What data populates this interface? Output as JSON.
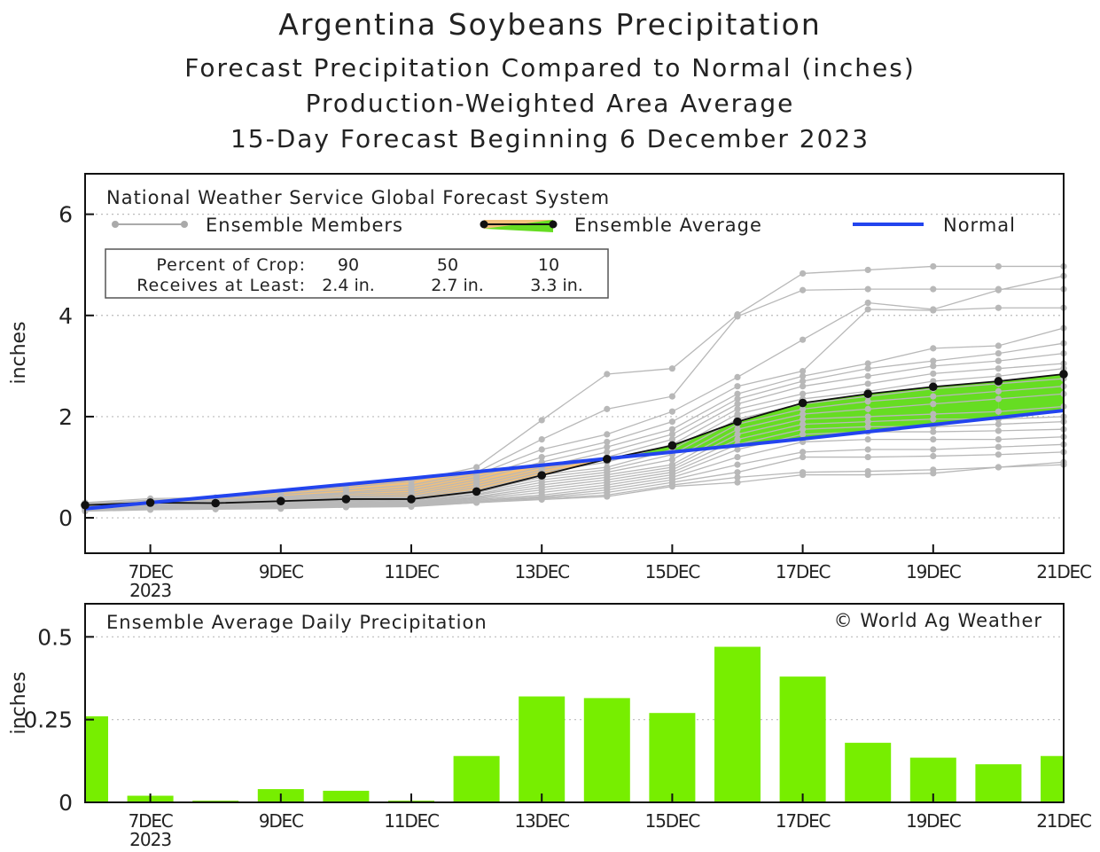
{
  "titles": {
    "main": "Argentina Soybeans Precipitation",
    "line2": "Forecast Precipitation Compared to Normal (inches)",
    "line3": "Production-Weighted Area Average",
    "line4": "15-Day Forecast Beginning 6 December 2023"
  },
  "legend": {
    "source": "National Weather Service Global Forecast System",
    "members": "Ensemble Members",
    "average": "Ensemble Average",
    "normal": "Normal"
  },
  "crop_box": {
    "row1_label": "Percent of Crop:",
    "row2_label": "Receives at Least:",
    "percents": [
      "90",
      "50",
      "10"
    ],
    "amounts": [
      "2.4 in.",
      "2.7 in.",
      "3.3 in."
    ]
  },
  "colors": {
    "normal": "#2244ee",
    "ensemble_avg": "#111111",
    "wet_fill": "#66dd22",
    "dry_fill": "#f3c07a",
    "members": "#b8b8b8",
    "bars": "#77ee00"
  },
  "chart_data": [
    {
      "type": "line",
      "title": "",
      "ylabel": "inches",
      "xlabel": "",
      "x": [
        6,
        7,
        8,
        9,
        10,
        11,
        12,
        13,
        14,
        15,
        16,
        17,
        18,
        19,
        20,
        21
      ],
      "xticks": [
        7,
        9,
        11,
        13,
        15,
        17,
        19,
        21
      ],
      "xtick_labels": [
        "7DEC",
        "9DEC",
        "11DEC",
        "13DEC",
        "15DEC",
        "17DEC",
        "19DEC",
        "21DEC"
      ],
      "xtick_sublabel": "2023",
      "ylim": [
        -0.7,
        6.8
      ],
      "yticks": [
        0,
        2,
        4,
        6
      ],
      "series": [
        {
          "name": "Ensemble Average",
          "values": [
            0.25,
            0.3,
            0.29,
            0.33,
            0.37,
            0.37,
            0.52,
            0.84,
            1.16,
            1.43,
            1.9,
            2.27,
            2.45,
            2.59,
            2.7,
            2.84
          ]
        },
        {
          "name": "Normal",
          "values": [
            0.18,
            0.3,
            0.42,
            0.54,
            0.66,
            0.78,
            0.91,
            1.04,
            1.17,
            1.3,
            1.43,
            1.56,
            1.7,
            1.84,
            1.98,
            2.12
          ]
        }
      ],
      "members": [
        [
          0.3,
          0.38,
          0.4,
          0.5,
          0.6,
          0.72,
          1.0,
          1.93,
          2.84,
          2.95,
          4.02,
          4.83,
          4.9,
          4.97,
          4.97,
          4.97
        ],
        [
          0.28,
          0.35,
          0.38,
          0.46,
          0.55,
          0.65,
          0.9,
          1.55,
          2.15,
          2.4,
          3.98,
          4.5,
          4.52,
          4.52,
          4.52,
          4.52
        ],
        [
          0.26,
          0.33,
          0.35,
          0.42,
          0.5,
          0.6,
          0.85,
          1.35,
          1.65,
          2.1,
          2.78,
          3.52,
          4.25,
          4.12,
          4.5,
          4.78
        ],
        [
          0.25,
          0.32,
          0.33,
          0.4,
          0.48,
          0.55,
          0.8,
          1.2,
          1.5,
          1.9,
          2.6,
          2.9,
          4.12,
          4.1,
          4.15,
          4.15
        ],
        [
          0.24,
          0.3,
          0.32,
          0.38,
          0.45,
          0.5,
          0.75,
          1.1,
          1.4,
          1.75,
          2.45,
          2.8,
          3.05,
          3.35,
          3.4,
          3.75
        ],
        [
          0.23,
          0.29,
          0.31,
          0.36,
          0.42,
          0.46,
          0.7,
          1.0,
          1.3,
          1.65,
          2.35,
          2.7,
          2.95,
          3.1,
          3.25,
          3.45
        ],
        [
          0.22,
          0.28,
          0.3,
          0.34,
          0.4,
          0.42,
          0.65,
          0.95,
          1.2,
          1.55,
          2.25,
          2.6,
          2.8,
          3.0,
          3.1,
          3.25
        ],
        [
          0.21,
          0.27,
          0.29,
          0.32,
          0.38,
          0.4,
          0.6,
          0.9,
          1.1,
          1.45,
          2.15,
          2.45,
          2.65,
          2.85,
          2.95,
          3.05
        ],
        [
          0.2,
          0.26,
          0.28,
          0.3,
          0.36,
          0.38,
          0.55,
          0.85,
          1.0,
          1.35,
          2.05,
          2.35,
          2.5,
          2.7,
          2.8,
          2.95
        ],
        [
          0.2,
          0.25,
          0.27,
          0.29,
          0.34,
          0.36,
          0.52,
          0.8,
          0.95,
          1.25,
          1.95,
          2.25,
          2.4,
          2.55,
          2.65,
          2.75
        ],
        [
          0.19,
          0.24,
          0.26,
          0.28,
          0.32,
          0.34,
          0.5,
          0.75,
          0.9,
          1.15,
          1.85,
          2.15,
          2.3,
          2.4,
          2.5,
          2.6
        ],
        [
          0.18,
          0.23,
          0.25,
          0.27,
          0.3,
          0.32,
          0.47,
          0.7,
          0.85,
          1.05,
          1.75,
          2.05,
          2.15,
          2.25,
          2.35,
          2.45
        ],
        [
          0.18,
          0.22,
          0.24,
          0.26,
          0.29,
          0.3,
          0.45,
          0.65,
          0.8,
          1.0,
          1.65,
          1.95,
          2.0,
          2.05,
          2.1,
          2.2
        ],
        [
          0.17,
          0.21,
          0.23,
          0.25,
          0.28,
          0.29,
          0.42,
          0.6,
          0.75,
          0.95,
          1.55,
          1.85,
          1.9,
          1.95,
          1.95,
          2.0
        ],
        [
          0.16,
          0.2,
          0.22,
          0.24,
          0.27,
          0.28,
          0.4,
          0.55,
          0.7,
          0.9,
          1.45,
          1.75,
          1.8,
          1.8,
          1.85,
          1.9
        ],
        [
          0.16,
          0.19,
          0.21,
          0.23,
          0.26,
          0.27,
          0.38,
          0.5,
          0.65,
          0.85,
          1.35,
          1.65,
          1.7,
          1.7,
          1.72,
          1.75
        ],
        [
          0.15,
          0.18,
          0.2,
          0.22,
          0.25,
          0.26,
          0.36,
          0.45,
          0.6,
          0.8,
          1.2,
          1.5,
          1.55,
          1.55,
          1.55,
          1.6
        ],
        [
          0.15,
          0.18,
          0.2,
          0.21,
          0.24,
          0.25,
          0.34,
          0.42,
          0.55,
          0.75,
          1.05,
          1.3,
          1.35,
          1.35,
          1.4,
          1.45
        ],
        [
          0.14,
          0.17,
          0.19,
          0.2,
          0.23,
          0.24,
          0.32,
          0.4,
          0.5,
          0.7,
          0.9,
          1.2,
          1.2,
          1.22,
          1.25,
          1.3
        ],
        [
          0.14,
          0.17,
          0.18,
          0.19,
          0.22,
          0.23,
          0.3,
          0.38,
          0.45,
          0.65,
          0.8,
          0.9,
          0.92,
          0.95,
          1.0,
          1.05
        ],
        [
          0.13,
          0.16,
          0.17,
          0.18,
          0.21,
          0.22,
          0.3,
          0.36,
          0.42,
          0.62,
          0.7,
          0.85,
          0.85,
          0.88,
          1.0,
          1.1
        ]
      ]
    },
    {
      "type": "bar",
      "title": "Ensemble Average Daily Precipitation",
      "ylabel": "inches",
      "xlabel": "",
      "x": [
        6,
        7,
        8,
        9,
        10,
        11,
        12,
        13,
        14,
        15,
        16,
        17,
        18,
        19,
        20,
        21
      ],
      "values": [
        0.26,
        0.02,
        0.005,
        0.04,
        0.035,
        0.005,
        0.14,
        0.32,
        0.315,
        0.27,
        0.47,
        0.38,
        0.18,
        0.135,
        0.115,
        0.14
      ],
      "xticks": [
        7,
        9,
        11,
        13,
        15,
        17,
        19,
        21
      ],
      "xtick_labels": [
        "7DEC",
        "9DEC",
        "11DEC",
        "13DEC",
        "15DEC",
        "17DEC",
        "19DEC",
        "21DEC"
      ],
      "xtick_sublabel": "2023",
      "ylim": [
        0,
        0.6
      ],
      "yticks": [
        0,
        0.25,
        0.5
      ],
      "ytick_labels": [
        "0",
        "0.25",
        "0.5"
      ],
      "annotation": "© World Ag Weather"
    }
  ]
}
